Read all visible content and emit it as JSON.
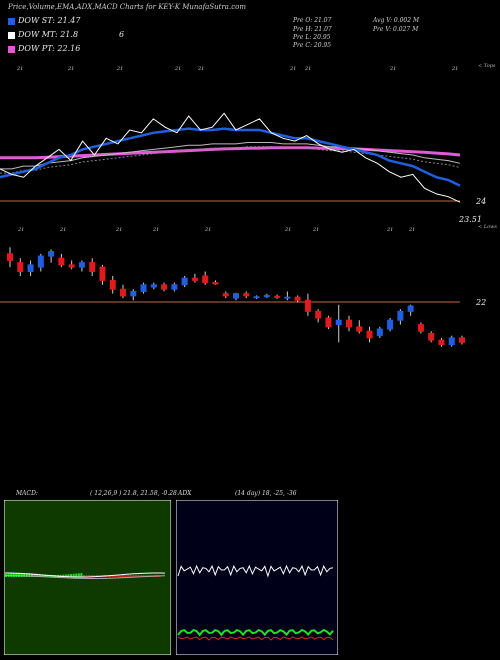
{
  "title": "Price,Volume,EMA,ADX,MACD Charts for KEY-K MunafaSutra.com",
  "legend": [
    {
      "label": "DOW ST: 21.47",
      "color": "#1f5fe0"
    },
    {
      "label": "DOW MT: 21.8",
      "color": "#ffffff"
    },
    {
      "label": "DOW PT: 22.16",
      "color": "#e05bd6"
    }
  ],
  "legend_extra": "6",
  "ohlc_panel": {
    "prev_open": "Pre  O: 21.07",
    "prev_high": "Pre  H: 21.07",
    "prev_low": "Pre  L: 20.95",
    "prev_close": "Pre  C: 20.95",
    "avg_vol": "Avg V: 0.002  M",
    "prev_vol": "Pre  V: 0.027 M"
  },
  "side_labels": {
    "top": "< Tops",
    "low": "< Lows"
  },
  "upper_dates": [
    "21",
    "21",
    "21",
    "21",
    "21",
    "21",
    "21",
    "21",
    "21"
  ],
  "lower_dates": [
    "21",
    "21",
    "21",
    "21",
    "21",
    "21",
    "21",
    "21",
    "21"
  ],
  "macd_title": "MACD:",
  "macd_params": "( 12,26,9 ) 21.8, 21.58, -0.28",
  "adx_title": "ADX",
  "adx_params": "(14  day) 18, -25, -36",
  "colors": {
    "up": "#1f5fe0",
    "down": "#e01b1b",
    "ema_st": "#1f5fe0",
    "ema_pt": "#e05bd6",
    "macd_bg": "#0e3a00",
    "adx_bg": "#000018"
  },
  "chart_data": {
    "type": "candlestick",
    "price_levels": [
      {
        "value": 24,
        "label": "24"
      },
      {
        "value": 23.51,
        "label": "23.51"
      },
      {
        "value": 22,
        "label": "22"
      }
    ],
    "ylim": [
      20.5,
      24.5
    ],
    "close_line": [
      24.9,
      24.7,
      24.6,
      25.0,
      25.3,
      25.6,
      25.2,
      25.9,
      25.4,
      26.0,
      25.8,
      26.3,
      26.2,
      26.7,
      26.4,
      26.2,
      26.8,
      26.3,
      26.4,
      26.9,
      26.3,
      26.5,
      26.7,
      26.2,
      26.0,
      25.9,
      26.1,
      25.8,
      25.6,
      25.5,
      25.6,
      25.3,
      25.1,
      24.8,
      24.6,
      24.7,
      24.2,
      24.0,
      23.9,
      23.7
    ],
    "ema_st": [
      24.6,
      24.7,
      24.8,
      24.9,
      25.1,
      25.3,
      25.4,
      25.6,
      25.7,
      25.8,
      25.9,
      26.0,
      26.1,
      26.2,
      26.25,
      26.3,
      26.35,
      26.3,
      26.3,
      26.35,
      26.3,
      26.3,
      26.3,
      26.2,
      26.1,
      26.0,
      26.0,
      25.9,
      25.8,
      25.7,
      25.6,
      25.5,
      25.4,
      25.2,
      25.1,
      25.0,
      24.8,
      24.6,
      24.5,
      24.3
    ],
    "ema_mt": [
      24.9,
      24.9,
      25.0,
      25.0,
      25.1,
      25.15,
      25.2,
      25.3,
      25.35,
      25.4,
      25.45,
      25.5,
      25.55,
      25.6,
      25.65,
      25.7,
      25.75,
      25.75,
      25.8,
      25.8,
      25.8,
      25.85,
      25.85,
      25.85,
      25.8,
      25.8,
      25.8,
      25.75,
      25.7,
      25.7,
      25.65,
      25.6,
      25.55,
      25.5,
      25.45,
      25.4,
      25.3,
      25.25,
      25.2,
      25.1
    ],
    "ema_pt": [
      25.3,
      25.3,
      25.3,
      25.3,
      25.32,
      25.34,
      25.36,
      25.38,
      25.4,
      25.42,
      25.44,
      25.46,
      25.48,
      25.5,
      25.52,
      25.54,
      25.56,
      25.58,
      25.6,
      25.62,
      25.63,
      25.64,
      25.65,
      25.66,
      25.66,
      25.66,
      25.66,
      25.65,
      25.64,
      25.63,
      25.62,
      25.6,
      25.58,
      25.56,
      25.54,
      25.52,
      25.5,
      25.47,
      25.44,
      25.4
    ],
    "candles": [
      {
        "o": 24.6,
        "h": 24.75,
        "l": 24.3,
        "c": 24.45
      },
      {
        "o": 24.4,
        "h": 24.5,
        "l": 24.1,
        "c": 24.2
      },
      {
        "o": 24.2,
        "h": 24.45,
        "l": 24.1,
        "c": 24.35
      },
      {
        "o": 24.3,
        "h": 24.6,
        "l": 24.2,
        "c": 24.55
      },
      {
        "o": 24.55,
        "h": 24.7,
        "l": 24.4,
        "c": 24.65
      },
      {
        "o": 24.5,
        "h": 24.6,
        "l": 24.3,
        "c": 24.35
      },
      {
        "o": 24.35,
        "h": 24.45,
        "l": 24.25,
        "c": 24.3
      },
      {
        "o": 24.3,
        "h": 24.45,
        "l": 24.2,
        "c": 24.4
      },
      {
        "o": 24.4,
        "h": 24.5,
        "l": 24.1,
        "c": 24.2
      },
      {
        "o": 24.3,
        "h": 24.35,
        "l": 23.9,
        "c": 24.0
      },
      {
        "o": 24.0,
        "h": 24.1,
        "l": 23.7,
        "c": 23.8
      },
      {
        "o": 23.8,
        "h": 23.9,
        "l": 23.6,
        "c": 23.65
      },
      {
        "o": 23.65,
        "h": 23.8,
        "l": 23.55,
        "c": 23.75
      },
      {
        "o": 23.75,
        "h": 23.95,
        "l": 23.7,
        "c": 23.9
      },
      {
        "o": 23.85,
        "h": 23.95,
        "l": 23.8,
        "c": 23.9
      },
      {
        "o": 23.9,
        "h": 23.95,
        "l": 23.75,
        "c": 23.8
      },
      {
        "o": 23.8,
        "h": 23.95,
        "l": 23.75,
        "c": 23.9
      },
      {
        "o": 23.9,
        "h": 24.1,
        "l": 23.85,
        "c": 24.05
      },
      {
        "o": 24.05,
        "h": 24.15,
        "l": 23.95,
        "c": 24.0
      },
      {
        "o": 24.1,
        "h": 24.2,
        "l": 23.9,
        "c": 23.95
      },
      {
        "o": 23.95,
        "h": 24.0,
        "l": 23.9,
        "c": 23.92
      },
      {
        "o": 23.7,
        "h": 23.75,
        "l": 23.6,
        "c": 23.65
      },
      {
        "o": 23.6,
        "h": 23.72,
        "l": 23.55,
        "c": 23.7
      },
      {
        "o": 23.7,
        "h": 23.75,
        "l": 23.6,
        "c": 23.65
      },
      {
        "o": 23.62,
        "h": 23.66,
        "l": 23.58,
        "c": 23.63
      },
      {
        "o": 23.63,
        "h": 23.7,
        "l": 23.6,
        "c": 23.66
      },
      {
        "o": 23.64,
        "h": 23.68,
        "l": 23.58,
        "c": 23.63
      },
      {
        "o": 23.6,
        "h": 23.75,
        "l": 23.55,
        "c": 23.62
      },
      {
        "o": 23.62,
        "h": 23.66,
        "l": 23.5,
        "c": 23.55
      },
      {
        "o": 23.55,
        "h": 23.7,
        "l": 23.2,
        "c": 23.3
      },
      {
        "o": 23.3,
        "h": 23.35,
        "l": 23.05,
        "c": 23.15
      },
      {
        "o": 23.15,
        "h": 23.2,
        "l": 22.9,
        "c": 22.95
      },
      {
        "o": 23.0,
        "h": 23.45,
        "l": 22.6,
        "c": 23.1
      },
      {
        "o": 23.1,
        "h": 23.2,
        "l": 22.85,
        "c": 22.95
      },
      {
        "o": 22.95,
        "h": 23.1,
        "l": 22.8,
        "c": 22.85
      },
      {
        "o": 22.85,
        "h": 22.95,
        "l": 22.6,
        "c": 22.7
      },
      {
        "o": 22.75,
        "h": 22.95,
        "l": 22.7,
        "c": 22.9
      },
      {
        "o": 22.9,
        "h": 23.15,
        "l": 22.85,
        "c": 23.1
      },
      {
        "o": 23.1,
        "h": 23.35,
        "l": 23.0,
        "c": 23.3
      },
      {
        "o": 23.3,
        "h": 23.45,
        "l": 23.2,
        "c": 23.42
      },
      {
        "o": 23.0,
        "h": 23.05,
        "l": 22.8,
        "c": 22.85
      },
      {
        "o": 22.8,
        "h": 22.85,
        "l": 22.6,
        "c": 22.65
      },
      {
        "o": 22.65,
        "h": 22.7,
        "l": 22.5,
        "c": 22.55
      },
      {
        "o": 22.55,
        "h": 22.75,
        "l": 22.5,
        "c": 22.7
      },
      {
        "o": 22.7,
        "h": 22.75,
        "l": 22.55,
        "c": 22.6
      }
    ]
  }
}
